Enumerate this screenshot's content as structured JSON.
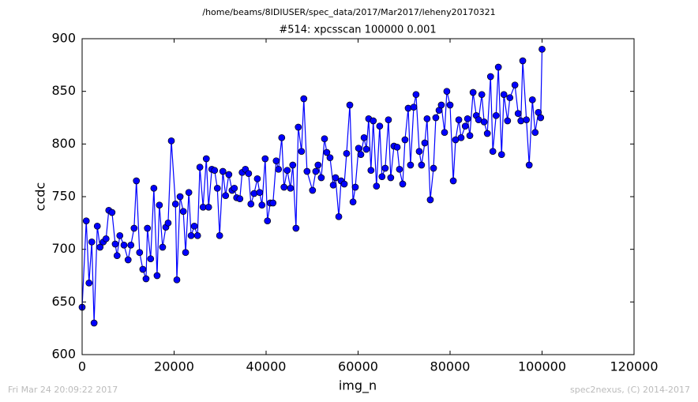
{
  "chart_data": {
    "type": "line",
    "suptitle": "/home/beams/8IDIUSER/spec_data/2017/Mar2017/leheny20170321",
    "title": "#514: xpcsscan 100000 0.001",
    "x_label": "img_n",
    "y_label": "ccdc",
    "footer_left": "Fri Mar 24 20:09:22 2017",
    "footer_right": "spec2nexus, (C) 2014-2017",
    "xlim": [
      0,
      120000
    ],
    "xticks": [
      0,
      20000,
      40000,
      60000,
      80000,
      100000,
      120000
    ],
    "ylim": [
      600,
      900
    ],
    "yticks": [
      600,
      650,
      700,
      750,
      800,
      850,
      900
    ],
    "color": "#0000ff",
    "marker": "circle",
    "x": [
      0,
      900,
      1500,
      2100,
      2600,
      3300,
      3900,
      4600,
      5200,
      5800,
      6500,
      7200,
      7600,
      8200,
      9100,
      10000,
      10600,
      11300,
      11800,
      12500,
      13200,
      13900,
      14200,
      14900,
      15600,
      16300,
      16800,
      17500,
      18200,
      18700,
      19400,
      20300,
      20600,
      21300,
      22000,
      22500,
      23200,
      23700,
      24400,
      25100,
      25600,
      26300,
      27000,
      27500,
      28200,
      28800,
      29400,
      29900,
      30600,
      31200,
      31900,
      32600,
      33100,
      33600,
      34300,
      34800,
      35500,
      36200,
      36700,
      37400,
      38100,
      38600,
      39100,
      39800,
      40300,
      40900,
      41500,
      42200,
      42700,
      43400,
      43900,
      44600,
      45300,
      45800,
      46500,
      47000,
      47700,
      48200,
      48900,
      50100,
      50800,
      51300,
      52000,
      52700,
      53200,
      53900,
      54600,
      55100,
      55800,
      56300,
      57000,
      57500,
      58200,
      58900,
      59400,
      60100,
      60600,
      61300,
      61800,
      62300,
      62800,
      63300,
      64000,
      64700,
      65200,
      65900,
      66600,
      67100,
      67800,
      68500,
      69000,
      69700,
      70200,
      70900,
      71400,
      72100,
      72600,
      73300,
      73800,
      74500,
      75000,
      75700,
      76400,
      76900,
      77600,
      78100,
      78800,
      79300,
      80000,
      80700,
      81200,
      81900,
      82400,
      83300,
      83800,
      84300,
      85000,
      85700,
      86200,
      86900,
      87400,
      88100,
      88800,
      89300,
      90000,
      90500,
      91200,
      91700,
      92500,
      93000,
      94100,
      94800,
      95400,
      95800,
      96600,
      97200,
      97900,
      98500,
      99200,
      99700,
      100000
    ],
    "values": [
      645,
      727,
      668,
      707,
      630,
      722,
      702,
      707,
      710,
      737,
      735,
      705,
      694,
      713,
      704,
      690,
      704,
      720,
      765,
      697,
      681,
      672,
      720,
      691,
      758,
      675,
      742,
      702,
      721,
      725,
      803,
      743,
      671,
      750,
      736,
      697,
      754,
      713,
      722,
      713,
      778,
      740,
      786,
      740,
      776,
      775,
      758,
      713,
      774,
      751,
      771,
      756,
      758,
      749,
      748,
      773,
      776,
      772,
      743,
      753,
      767,
      754,
      742,
      786,
      727,
      744,
      744,
      784,
      776,
      806,
      759,
      775,
      758,
      780,
      720,
      816,
      793,
      843,
      774,
      756,
      774,
      780,
      768,
      805,
      792,
      787,
      761,
      768,
      731,
      765,
      762,
      791,
      837,
      745,
      759,
      796,
      790,
      806,
      795,
      824,
      775,
      822,
      760,
      817,
      769,
      777,
      823,
      768,
      798,
      797,
      776,
      762,
      804,
      834,
      780,
      835,
      847,
      793,
      780,
      801,
      824,
      747,
      777,
      825,
      832,
      837,
      811,
      850,
      837,
      765,
      804,
      823,
      806,
      817,
      824,
      808,
      849,
      827,
      823,
      847,
      821,
      810,
      864,
      793,
      827,
      873,
      790,
      847,
      822,
      844,
      856,
      829,
      822,
      879,
      823,
      780,
      842,
      811,
      830,
      825,
      890
    ]
  }
}
